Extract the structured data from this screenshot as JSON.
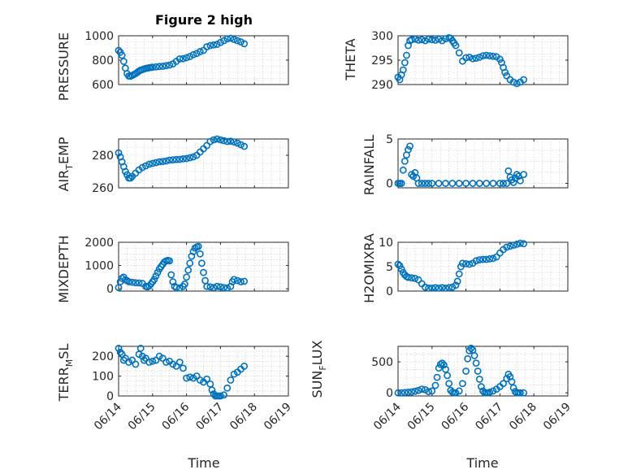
{
  "title": "Figure 2 high",
  "marker_color": "#0072bd",
  "x_axis": {
    "label": "Time",
    "ticks": [
      "06/14",
      "06/15",
      "06/16",
      "06/17",
      "06/18",
      "06/19"
    ],
    "range": [
      "06/14 00:00",
      "06/19 00:00"
    ]
  },
  "chart_data": [
    {
      "type": "scatter",
      "ylabel": "PRESSURE",
      "ylim": [
        600,
        1000
      ],
      "yticks": [
        600,
        800,
        1000
      ],
      "x": [
        0.0,
        0.05,
        0.1,
        0.15,
        0.2,
        0.25,
        0.3,
        0.35,
        0.4,
        0.45,
        0.5,
        0.55,
        0.6,
        0.65,
        0.7,
        0.75,
        0.8,
        0.85,
        0.9,
        0.95,
        1.0,
        1.1,
        1.2,
        1.3,
        1.4,
        1.5,
        1.6,
        1.7,
        1.8,
        1.9,
        2.0,
        2.1,
        2.2,
        2.3,
        2.4,
        2.5,
        2.6,
        2.7,
        2.8,
        2.9,
        3.0,
        3.1,
        3.2,
        3.3,
        3.4,
        3.5,
        3.6,
        3.7
      ],
      "y": [
        880,
        865,
        840,
        790,
        735,
        690,
        670,
        668,
        675,
        682,
        690,
        700,
        710,
        718,
        722,
        728,
        732,
        735,
        738,
        740,
        742,
        745,
        748,
        750,
        755,
        760,
        770,
        790,
        810,
        812,
        820,
        830,
        845,
        855,
        870,
        880,
        910,
        920,
        925,
        930,
        945,
        960,
        975,
        980,
        970,
        960,
        950,
        935
      ]
    },
    {
      "type": "scatter",
      "ylabel": "THETA",
      "ylim": [
        290,
        300
      ],
      "yticks": [
        290,
        295,
        300
      ],
      "x": [
        0.0,
        0.05,
        0.1,
        0.15,
        0.2,
        0.25,
        0.3,
        0.35,
        0.4,
        0.5,
        0.6,
        0.7,
        0.8,
        0.9,
        1.0,
        1.1,
        1.2,
        1.3,
        1.4,
        1.5,
        1.55,
        1.6,
        1.65,
        1.7,
        1.8,
        1.9,
        2.0,
        2.1,
        2.2,
        2.3,
        2.4,
        2.5,
        2.6,
        2.7,
        2.8,
        2.9,
        3.0,
        3.05,
        3.1,
        3.15,
        3.2,
        3.3,
        3.4,
        3.5,
        3.6,
        3.7
      ],
      "y": [
        291.5,
        291,
        292,
        293,
        294.5,
        296,
        298,
        299,
        299.2,
        299.3,
        299.1,
        299.2,
        299,
        299.3,
        299.2,
        299.1,
        299.3,
        299,
        299.4,
        299.6,
        299.5,
        299,
        298.5,
        298,
        296.5,
        294.8,
        295.5,
        295.6,
        295.3,
        295.4,
        295.6,
        295.9,
        296,
        295.9,
        295.8,
        295.7,
        295.2,
        294.5,
        293.5,
        292.5,
        291.8,
        291,
        290.5,
        290.2,
        290.5,
        291
      ]
    },
    {
      "type": "scatter",
      "ylabel": "AIR_TEMP",
      "ylim": [
        260,
        290
      ],
      "yticks": [
        260,
        280
      ],
      "x": [
        0.0,
        0.05,
        0.1,
        0.15,
        0.2,
        0.25,
        0.3,
        0.35,
        0.4,
        0.5,
        0.6,
        0.7,
        0.8,
        0.9,
        1.0,
        1.1,
        1.2,
        1.3,
        1.4,
        1.5,
        1.6,
        1.7,
        1.8,
        1.9,
        2.0,
        2.1,
        2.2,
        2.3,
        2.4,
        2.5,
        2.6,
        2.7,
        2.8,
        2.9,
        3.0,
        3.1,
        3.2,
        3.3,
        3.4,
        3.5,
        3.6,
        3.7
      ],
      "y": [
        281.5,
        279,
        276,
        273,
        270,
        268,
        266,
        266,
        267,
        269,
        271,
        272.5,
        273.5,
        274.5,
        275,
        275.5,
        276,
        276.2,
        276.5,
        277,
        277.2,
        277.4,
        277.5,
        277.8,
        278,
        278.5,
        279,
        280,
        282,
        284,
        286,
        288.5,
        289.5,
        290,
        289.5,
        289,
        288.5,
        288.7,
        288.2,
        287.5,
        286.5,
        285.5
      ]
    },
    {
      "type": "scatter",
      "ylabel": "RAINFALL",
      "ylim": [
        -0.5,
        5
      ],
      "yticks": [
        0,
        5
      ],
      "x": [
        0.0,
        0.05,
        0.1,
        0.15,
        0.2,
        0.25,
        0.3,
        0.35,
        0.4,
        0.45,
        0.5,
        0.55,
        0.6,
        0.7,
        0.8,
        0.9,
        1.0,
        1.2,
        1.4,
        1.6,
        1.8,
        2.0,
        2.2,
        2.4,
        2.6,
        2.8,
        3.0,
        3.1,
        3.2,
        3.25,
        3.3,
        3.35,
        3.4,
        3.45,
        3.5,
        3.55,
        3.6,
        3.7
      ],
      "y": [
        0,
        0,
        0,
        1.5,
        2.5,
        3.2,
        3.8,
        4.2,
        1.0,
        0.8,
        1.2,
        0.6,
        0,
        0,
        0,
        0,
        0,
        0,
        0,
        0,
        0,
        0,
        0,
        0,
        0,
        0,
        0,
        0,
        0,
        1.4,
        0.7,
        0.4,
        0.1,
        0.6,
        1.0,
        0.8,
        0.3,
        1.0
      ]
    },
    {
      "type": "scatter",
      "ylabel": "MIXDEPTH",
      "ylim": [
        -100,
        2000
      ],
      "yticks": [
        0,
        1000,
        2000
      ],
      "x": [
        0.0,
        0.05,
        0.1,
        0.15,
        0.2,
        0.25,
        0.3,
        0.4,
        0.5,
        0.6,
        0.7,
        0.8,
        0.85,
        0.9,
        0.95,
        1.0,
        1.05,
        1.1,
        1.15,
        1.2,
        1.25,
        1.3,
        1.35,
        1.4,
        1.45,
        1.5,
        1.55,
        1.6,
        1.65,
        1.7,
        1.8,
        1.9,
        1.95,
        2.0,
        2.05,
        2.1,
        2.15,
        2.2,
        2.25,
        2.3,
        2.35,
        2.4,
        2.45,
        2.5,
        2.55,
        2.6,
        2.7,
        2.8,
        2.9,
        3.0,
        3.1,
        3.2,
        3.3,
        3.35,
        3.4,
        3.5,
        3.6,
        3.7
      ],
      "y": [
        50,
        300,
        450,
        500,
        380,
        350,
        300,
        280,
        260,
        250,
        230,
        100,
        80,
        120,
        200,
        300,
        400,
        550,
        700,
        850,
        950,
        1050,
        1150,
        1200,
        1220,
        1200,
        600,
        300,
        100,
        50,
        30,
        100,
        200,
        500,
        800,
        1100,
        1400,
        1600,
        1750,
        1800,
        1820,
        1500,
        1100,
        700,
        350,
        100,
        80,
        50,
        100,
        80,
        50,
        30,
        100,
        300,
        400,
        350,
        300,
        320
      ]
    },
    {
      "type": "scatter",
      "ylabel": "H2OMIXRA",
      "ylim": [
        0,
        10
      ],
      "yticks": [
        0,
        5,
        10
      ],
      "x": [
        0.0,
        0.05,
        0.1,
        0.15,
        0.2,
        0.25,
        0.3,
        0.4,
        0.5,
        0.6,
        0.7,
        0.8,
        0.9,
        1.0,
        1.1,
        1.2,
        1.3,
        1.4,
        1.5,
        1.6,
        1.7,
        1.75,
        1.8,
        1.85,
        1.9,
        2.0,
        2.1,
        2.2,
        2.3,
        2.4,
        2.5,
        2.6,
        2.7,
        2.8,
        2.9,
        3.0,
        3.1,
        3.2,
        3.3,
        3.4,
        3.5,
        3.6,
        3.7
      ],
      "y": [
        5.5,
        5.2,
        4.5,
        3.8,
        3.3,
        3.0,
        2.8,
        2.7,
        2.6,
        2.3,
        1.5,
        0.8,
        0.6,
        0.6,
        0.7,
        0.6,
        0.7,
        0.6,
        0.7,
        0.8,
        1.2,
        2.0,
        3.5,
        5.0,
        5.7,
        5.6,
        5.5,
        5.7,
        6.2,
        6.4,
        6.5,
        6.5,
        6.6,
        6.7,
        7.0,
        7.8,
        8.5,
        9.0,
        9.2,
        9.4,
        9.6,
        9.8,
        9.7
      ]
    },
    {
      "type": "scatter",
      "ylabel": "TERR_MSL",
      "ylim": [
        0,
        250
      ],
      "yticks": [
        0,
        100,
        200
      ],
      "x": [
        0.0,
        0.05,
        0.1,
        0.15,
        0.2,
        0.3,
        0.4,
        0.5,
        0.6,
        0.65,
        0.7,
        0.75,
        0.8,
        0.9,
        1.0,
        1.1,
        1.2,
        1.3,
        1.4,
        1.5,
        1.6,
        1.7,
        1.8,
        1.9,
        2.0,
        2.1,
        2.2,
        2.3,
        2.4,
        2.5,
        2.6,
        2.7,
        2.75,
        2.8,
        2.85,
        2.9,
        2.95,
        3.0,
        3.1,
        3.2,
        3.3,
        3.4,
        3.5,
        3.6,
        3.7
      ],
      "y": [
        240,
        220,
        210,
        180,
        190,
        170,
        180,
        160,
        210,
        240,
        200,
        180,
        190,
        170,
        175,
        180,
        200,
        190,
        170,
        175,
        160,
        150,
        170,
        140,
        90,
        95,
        90,
        100,
        80,
        70,
        85,
        60,
        30,
        10,
        0,
        0,
        0,
        0,
        5,
        40,
        80,
        110,
        120,
        135,
        150
      ]
    },
    {
      "type": "scatter",
      "ylabel": "SUN_FLUX",
      "ylim": [
        -50,
        750
      ],
      "yticks": [
        0,
        500
      ],
      "x": [
        0.0,
        0.1,
        0.2,
        0.3,
        0.4,
        0.5,
        0.6,
        0.7,
        0.8,
        0.9,
        1.0,
        1.1,
        1.15,
        1.2,
        1.25,
        1.3,
        1.35,
        1.4,
        1.45,
        1.5,
        1.55,
        1.6,
        1.65,
        1.7,
        1.8,
        1.9,
        2.0,
        2.05,
        2.1,
        2.15,
        2.2,
        2.25,
        2.3,
        2.35,
        2.4,
        2.45,
        2.5,
        2.55,
        2.6,
        2.65,
        2.7,
        2.8,
        2.9,
        3.0,
        3.1,
        3.2,
        3.25,
        3.3,
        3.35,
        3.4,
        3.45,
        3.5,
        3.55,
        3.6,
        3.7
      ],
      "y": [
        0,
        0,
        5,
        10,
        15,
        25,
        40,
        60,
        50,
        20,
        30,
        120,
        250,
        400,
        460,
        480,
        450,
        380,
        280,
        150,
        40,
        10,
        0,
        0,
        30,
        150,
        350,
        550,
        680,
        720,
        690,
        600,
        480,
        350,
        220,
        100,
        30,
        0,
        0,
        0,
        10,
        30,
        60,
        100,
        150,
        230,
        300,
        260,
        180,
        80,
        20,
        0,
        0,
        0,
        0
      ]
    }
  ]
}
